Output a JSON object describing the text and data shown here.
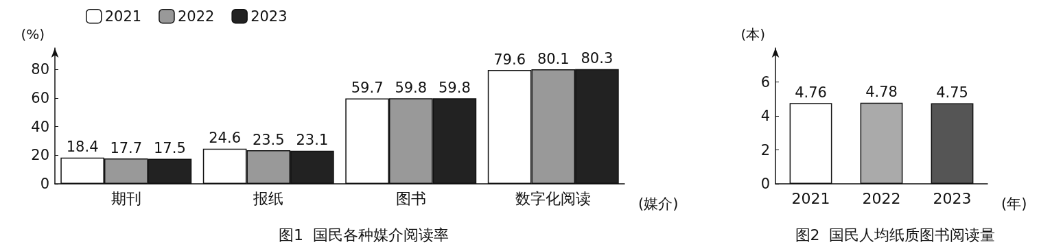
{
  "chart_data": [
    {
      "type": "bar",
      "title": "图1  国民各种媒介阅读率",
      "ylabel": "(%)",
      "xlabel": "(媒介)",
      "categories": [
        "期刊",
        "报纸",
        "图书",
        "数字化阅读"
      ],
      "series": [
        {
          "name": "2021",
          "color": "#ffffff",
          "values": [
            18.4,
            24.6,
            59.7,
            79.6
          ]
        },
        {
          "name": "2022",
          "color": "#999999",
          "values": [
            17.7,
            23.5,
            59.8,
            80.1
          ]
        },
        {
          "name": "2023",
          "color": "#222222",
          "values": [
            17.5,
            23.1,
            59.8,
            80.3
          ]
        }
      ],
      "ylim": [
        0,
        95
      ],
      "yticks": [
        0,
        20,
        40,
        60,
        80
      ],
      "grid": false,
      "legend": "top left",
      "data_labels": true
    },
    {
      "type": "bar",
      "title": "图2  国民人均纸质图书阅读量",
      "ylabel": "(本)",
      "xlabel": "(年)",
      "categories": [
        "2021",
        "2022",
        "2023"
      ],
      "values": [
        4.76,
        4.78,
        4.75
      ],
      "colors": [
        "#ffffff",
        "#aaaaaa",
        "#555555"
      ],
      "ylim": [
        0,
        8
      ],
      "yticks": [
        0,
        2,
        4,
        6
      ],
      "grid": false,
      "legend": false,
      "data_labels": true
    }
  ]
}
